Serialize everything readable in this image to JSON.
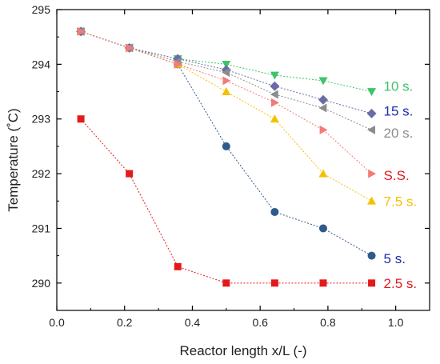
{
  "chart_data": {
    "type": "line",
    "title": "",
    "xlabel": "Reactor length x/L (-)",
    "ylabel": "Temperature (˚C)",
    "xlim": [
      0.0,
      1.1
    ],
    "ylim": [
      289.5,
      295
    ],
    "x_ticks": [
      "0.0",
      "0.2",
      "0.4",
      "0.6",
      "0.8",
      "1.0"
    ],
    "x_tick_values": [
      0.0,
      0.2,
      0.4,
      0.6,
      0.8,
      1.0
    ],
    "y_ticks": [
      "290",
      "291",
      "292",
      "293",
      "294",
      "295"
    ],
    "y_tick_values": [
      290,
      291,
      292,
      293,
      294,
      295
    ],
    "grid": false,
    "legend": "inline labels at right end of each series",
    "series": [
      {
        "name": "2.5 s.",
        "color": "#e31a1c",
        "marker": "square",
        "x": [
          0.071,
          0.214,
          0.357,
          0.5,
          0.643,
          0.786,
          0.929
        ],
        "y": [
          293.0,
          292.0,
          290.3,
          290.0,
          290.0,
          290.0,
          290.0
        ]
      },
      {
        "name": "5 s.",
        "color": "#2e5a8c",
        "marker": "circle",
        "x": [
          0.071,
          0.214,
          0.357,
          0.5,
          0.643,
          0.786,
          0.929
        ],
        "y": [
          294.6,
          294.3,
          294.0,
          292.5,
          291.3,
          291.0,
          290.5
        ]
      },
      {
        "name": "7.5 s.",
        "color": "#f5c000",
        "marker": "triangle-up",
        "x": [
          0.071,
          0.214,
          0.357,
          0.5,
          0.643,
          0.786,
          0.929
        ],
        "y": [
          294.6,
          294.3,
          294.0,
          293.5,
          293.0,
          292.0,
          291.5
        ]
      },
      {
        "name": "10 s.",
        "color": "#3cc46a",
        "marker": "triangle-down",
        "x": [
          0.071,
          0.214,
          0.357,
          0.5,
          0.643,
          0.786,
          0.929
        ],
        "y": [
          294.6,
          294.3,
          294.1,
          294.0,
          293.8,
          293.7,
          293.5
        ]
      },
      {
        "name": "15 s.",
        "color": "#6b6ba8",
        "marker": "diamond",
        "x": [
          0.071,
          0.214,
          0.357,
          0.5,
          0.643,
          0.786,
          0.929
        ],
        "y": [
          294.6,
          294.3,
          294.1,
          293.9,
          293.6,
          293.35,
          293.1
        ]
      },
      {
        "name": "20 s.",
        "color": "#8c8c8c",
        "marker": "triangle-left",
        "x": [
          0.071,
          0.214,
          0.357,
          0.5,
          0.643,
          0.786,
          0.929
        ],
        "y": [
          294.6,
          294.3,
          294.05,
          293.85,
          293.45,
          293.2,
          292.8
        ]
      },
      {
        "name": "S.S.",
        "color": "#f47a7a",
        "marker": "triangle-right",
        "x": [
          0.071,
          0.214,
          0.357,
          0.5,
          0.643,
          0.786,
          0.929
        ],
        "y": [
          294.6,
          294.3,
          294.0,
          293.7,
          293.3,
          292.8,
          292.0
        ]
      }
    ],
    "series_label_colors": {
      "2.5 s.": "#e31a1c",
      "5 s.": "#1c2fa8",
      "7.5 s.": "#f5c000",
      "10 s.": "#3cc46a",
      "15 s.": "#1c2fa8",
      "20 s.": "#8c8c8c",
      "S.S.": "#e31a1c"
    },
    "series_label_y": {
      "10 s.": 293.6,
      "15 s.": 293.15,
      "20 s.": 292.75,
      "S.S.": 291.97,
      "7.5 s.": 291.5,
      "5 s.": 290.45,
      "2.5 s.": 290.0
    }
  }
}
